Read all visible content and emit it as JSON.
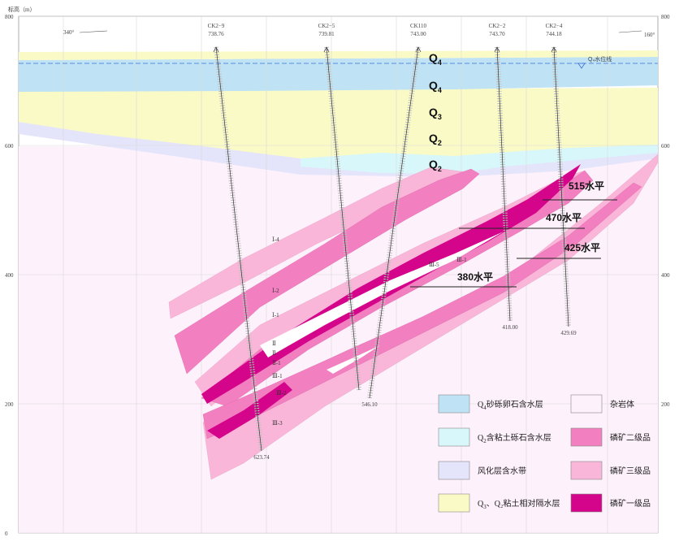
{
  "axis": {
    "title": "标高（m）",
    "left_ticks": [
      {
        "label": "800",
        "elev": 800
      },
      {
        "label": "600",
        "elev": 600
      },
      {
        "label": "400",
        "elev": 400
      },
      {
        "label": "200",
        "elev": 200
      },
      {
        "label": "0",
        "elev": 0
      }
    ],
    "right_ticks": [
      {
        "label": "800",
        "elev": 800
      },
      {
        "label": "600",
        "elev": 600
      },
      {
        "label": "400",
        "elev": 400
      },
      {
        "label": "200",
        "elev": 200
      }
    ]
  },
  "orientation": {
    "left": "340°",
    "right": "160°"
  },
  "boreholes": [
    {
      "name": "CK2−9",
      "collar": "738.76",
      "bottom": "623.74"
    },
    {
      "name": "CK2−5",
      "collar": "739.81",
      "bottom": ""
    },
    {
      "name": "CK110",
      "collar": "743.00",
      "bottom": "546.10"
    },
    {
      "name": "CK2−2",
      "collar": "743.70",
      "bottom": "418.00"
    },
    {
      "name": "CK2−4",
      "collar": "744.18",
      "bottom": "429.69"
    }
  ],
  "water_table_label": "Q₄水位线",
  "strata_labels": [
    {
      "main": "Q",
      "sub": "4"
    },
    {
      "main": "Q",
      "sub": "4"
    },
    {
      "main": "Q",
      "sub": "3"
    },
    {
      "main": "Q",
      "sub": "2"
    },
    {
      "main": "Q",
      "sub": "2"
    }
  ],
  "levels": [
    {
      "label": "515水平"
    },
    {
      "label": "470水平"
    },
    {
      "label": "425水平"
    },
    {
      "label": "380水平"
    }
  ],
  "ore_body_marks": [
    "Ⅰ-4",
    "Ⅰ-2",
    "Ⅰ-1",
    "Ⅱ",
    "Ⅱ",
    "Ⅱ-1",
    "Ⅲ-1",
    "Ⅲ-2",
    "Ⅲ-3",
    "Ⅲ-5",
    "Ⅲ-1"
  ],
  "legend": {
    "items": [
      {
        "label_main": "Q",
        "label_sub": "4",
        "label_rest": "砂砾卵石含水层",
        "color": "#bfe3f5"
      },
      {
        "label_main": "",
        "label_sub": "",
        "label_rest": "杂岩体",
        "color": "#fdf1fb"
      },
      {
        "label_main": "Q",
        "label_sub": "2",
        "label_rest": "含粘土砾石含水层",
        "color": "#d7f7fa"
      },
      {
        "label_main": "",
        "label_sub": "",
        "label_rest": "磷矿二级品",
        "color": "#f27fc0"
      },
      {
        "label_main": "",
        "label_sub": "",
        "label_rest": "风化层含水带",
        "color": "#e4e4fb"
      },
      {
        "label_main": "",
        "label_sub": "",
        "label_rest": "磷矿三级品",
        "color": "#f9b6d8"
      },
      {
        "label_main": "Q",
        "label_sub": "3",
        "label_rest": "、Q₂粘土相对隔水层",
        "color": "#fafac7"
      },
      {
        "label_main": "",
        "label_sub": "",
        "label_rest": "磷矿一级品",
        "color": "#d4058a"
      }
    ]
  },
  "colors": {
    "complex_rock": "#fdf1fb",
    "q4_aquifer": "#bfe3f5",
    "q2_aquifer": "#d7f7fa",
    "weathered_zone": "#e4e4fb",
    "clay_aquitard": "#fafac7",
    "ore_grade_1": "#d4058a",
    "ore_grade_2": "#f27fc0",
    "ore_grade_3": "#f9b6d8",
    "water_table": "#3a6fd8"
  }
}
